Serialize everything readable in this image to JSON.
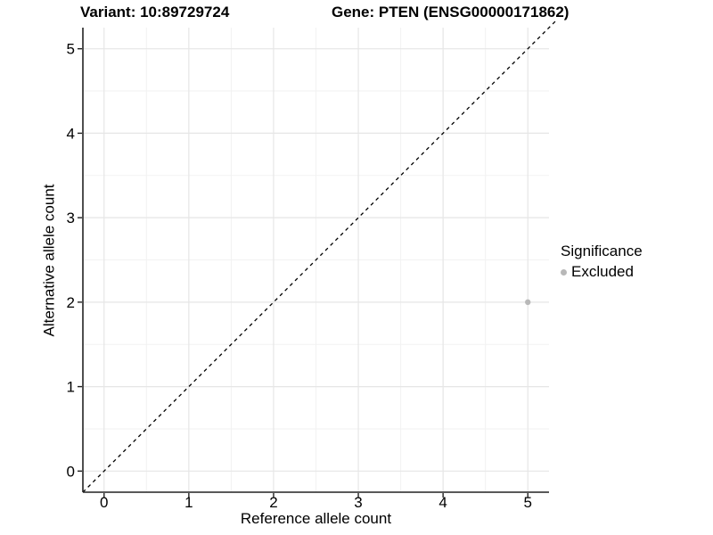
{
  "figure": {
    "title_left": "Variant: 10:89729724",
    "title_right": "Gene: PTEN (ENSG00000171862)"
  },
  "axes": {
    "x_title": "Reference allele count",
    "y_title": "Alternative allele count"
  },
  "legend": {
    "title": "Significance",
    "items": [
      {
        "label": "Excluded",
        "color": "#b8b8b8"
      }
    ]
  },
  "chart_data": {
    "type": "scatter",
    "title": "Variant: 10:89729724   Gene: PTEN (ENSG00000171862)",
    "xlabel": "Reference allele count",
    "ylabel": "Alternative allele count",
    "xlim": [
      -0.25,
      5.25
    ],
    "ylim": [
      -0.25,
      5.25
    ],
    "x_ticks": [
      0,
      1,
      2,
      3,
      4,
      5
    ],
    "y_ticks": [
      0,
      1,
      2,
      3,
      4,
      5
    ],
    "minor_gridlines": [
      0.5,
      1.5,
      2.5,
      3.5,
      4.5
    ],
    "grid": true,
    "legend_position": "right",
    "series": [
      {
        "name": "Excluded",
        "color": "#b8b8b8",
        "points": [
          {
            "x": 5,
            "y": 2
          }
        ]
      }
    ],
    "reference_line": {
      "slope": 1,
      "intercept": 0,
      "dashed": true,
      "color": "#000000"
    },
    "colors": {
      "grid_major": "#e6e6e6",
      "grid_minor": "#f2f2f2",
      "axis_line": "#222222",
      "tick": "#222222",
      "text": "#000000",
      "point": "#b8b8b8"
    }
  }
}
